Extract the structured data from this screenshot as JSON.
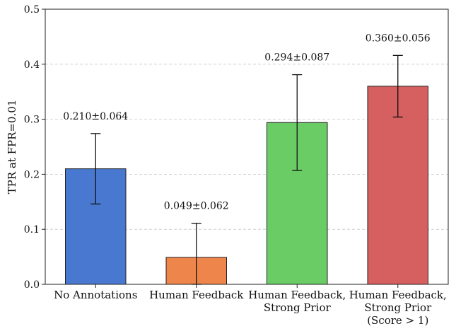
{
  "chart_data": {
    "type": "bar",
    "categories": [
      [
        "No Annotations"
      ],
      [
        "Human Feedback"
      ],
      [
        "Human Feedback,",
        "Strong Prior"
      ],
      [
        "Human Feedback,",
        "Strong Prior",
        "(Score > 1)"
      ]
    ],
    "values": [
      0.21,
      0.049,
      0.294,
      0.36
    ],
    "errors": [
      0.064,
      0.062,
      0.087,
      0.056
    ],
    "data_labels": [
      "0.210±0.064",
      "0.049±0.062",
      "0.294±0.087",
      "0.360±0.056"
    ],
    "colors": [
      "#4878cf",
      "#ee854a",
      "#6acc64",
      "#d65f5f"
    ],
    "ylabel": "TPR at FPR=0.01",
    "ylim": [
      0,
      0.5
    ],
    "yticks": [
      "0.0",
      "0.1",
      "0.2",
      "0.3",
      "0.4",
      "0.5"
    ],
    "grid": "horizontal-dashed"
  }
}
